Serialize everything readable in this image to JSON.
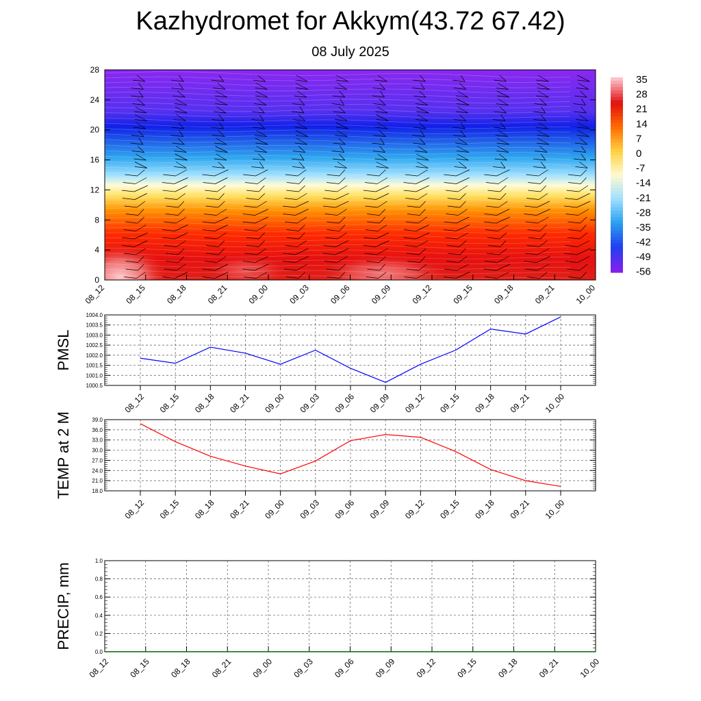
{
  "header": {
    "title": "Kazhydromet for Akkym(43.72 67.42)",
    "subtitle": "08 July 2025"
  },
  "chart_data": [
    {
      "type": "heatmap",
      "ylim": [
        0,
        28
      ],
      "yticks": [
        "0",
        "4",
        "8",
        "12",
        "16",
        "20",
        "24",
        "28"
      ],
      "xticks": [
        "08_12",
        "08_15",
        "08_18",
        "08_21",
        "09_00",
        "09_03",
        "09_06",
        "09_09",
        "09_12",
        "09_15",
        "09_18",
        "09_21",
        "10_00"
      ],
      "colorbar": {
        "labels": [
          "35",
          "28",
          "21",
          "14",
          "7",
          "0",
          "-7",
          "-14",
          "-21",
          "-28",
          "-35",
          "-42",
          "-49",
          "-56"
        ],
        "stops": [
          "#ffc0c8",
          "#e01010",
          "#ff6a00",
          "#ffd040",
          "#fffad0",
          "#a0e0ff",
          "#2aa0f0",
          "#2040f0",
          "#8020f0"
        ]
      },
      "wind_barbs": true
    },
    {
      "type": "line",
      "ylabel": "PMSL",
      "ylim": [
        1000.5,
        1004.0
      ],
      "yticks": [
        "1000.5",
        "1001.0",
        "1001.5",
        "1002.0",
        "1002.5",
        "1003.0",
        "1003.5",
        "1004.0"
      ],
      "categories": [
        "08_12",
        "08_15",
        "08_18",
        "08_21",
        "09_00",
        "09_03",
        "09_06",
        "09_09",
        "09_12",
        "09_15",
        "09_18",
        "09_21",
        "10_00"
      ],
      "series": [
        {
          "color": "#0000ff",
          "values": [
            1001.85,
            1001.6,
            1002.4,
            1002.1,
            1001.55,
            1002.25,
            1001.35,
            1000.65,
            1001.55,
            1002.25,
            1003.3,
            1003.05,
            1003.9
          ]
        }
      ],
      "grid": true
    },
    {
      "type": "line",
      "ylabel": "TEMP at 2 M",
      "ylim": [
        18.0,
        39.0
      ],
      "yticks": [
        "18.0",
        "21.0",
        "24.0",
        "27.0",
        "30.0",
        "33.0",
        "36.0",
        "39.0"
      ],
      "categories": [
        "08_12",
        "08_15",
        "08_18",
        "08_21",
        "09_00",
        "09_03",
        "09_06",
        "09_09",
        "09_12",
        "09_15",
        "09_18",
        "09_21",
        "10_00"
      ],
      "series": [
        {
          "color": "#ff0000",
          "values": [
            37.8,
            32.5,
            28.2,
            25.3,
            23.0,
            26.8,
            32.8,
            34.6,
            33.8,
            29.6,
            24.3,
            21.0,
            19.3
          ]
        }
      ],
      "grid": true
    },
    {
      "type": "line",
      "ylabel": "PRECIP, mm",
      "ylim": [
        0.0,
        1.0
      ],
      "yticks": [
        "0.0",
        "0.2",
        "0.4",
        "0.6",
        "0.8",
        "1.0"
      ],
      "xticks": [
        "08_12",
        "08_15",
        "08_18",
        "08_21",
        "09_00",
        "09_03",
        "09_06",
        "09_09",
        "09_12",
        "09_15",
        "09_18",
        "09_21",
        "10_00"
      ],
      "series": [
        {
          "color": "#006400",
          "values": [
            0,
            0,
            0,
            0,
            0,
            0,
            0,
            0,
            0,
            0,
            0,
            0,
            0
          ]
        }
      ],
      "grid": true
    }
  ]
}
